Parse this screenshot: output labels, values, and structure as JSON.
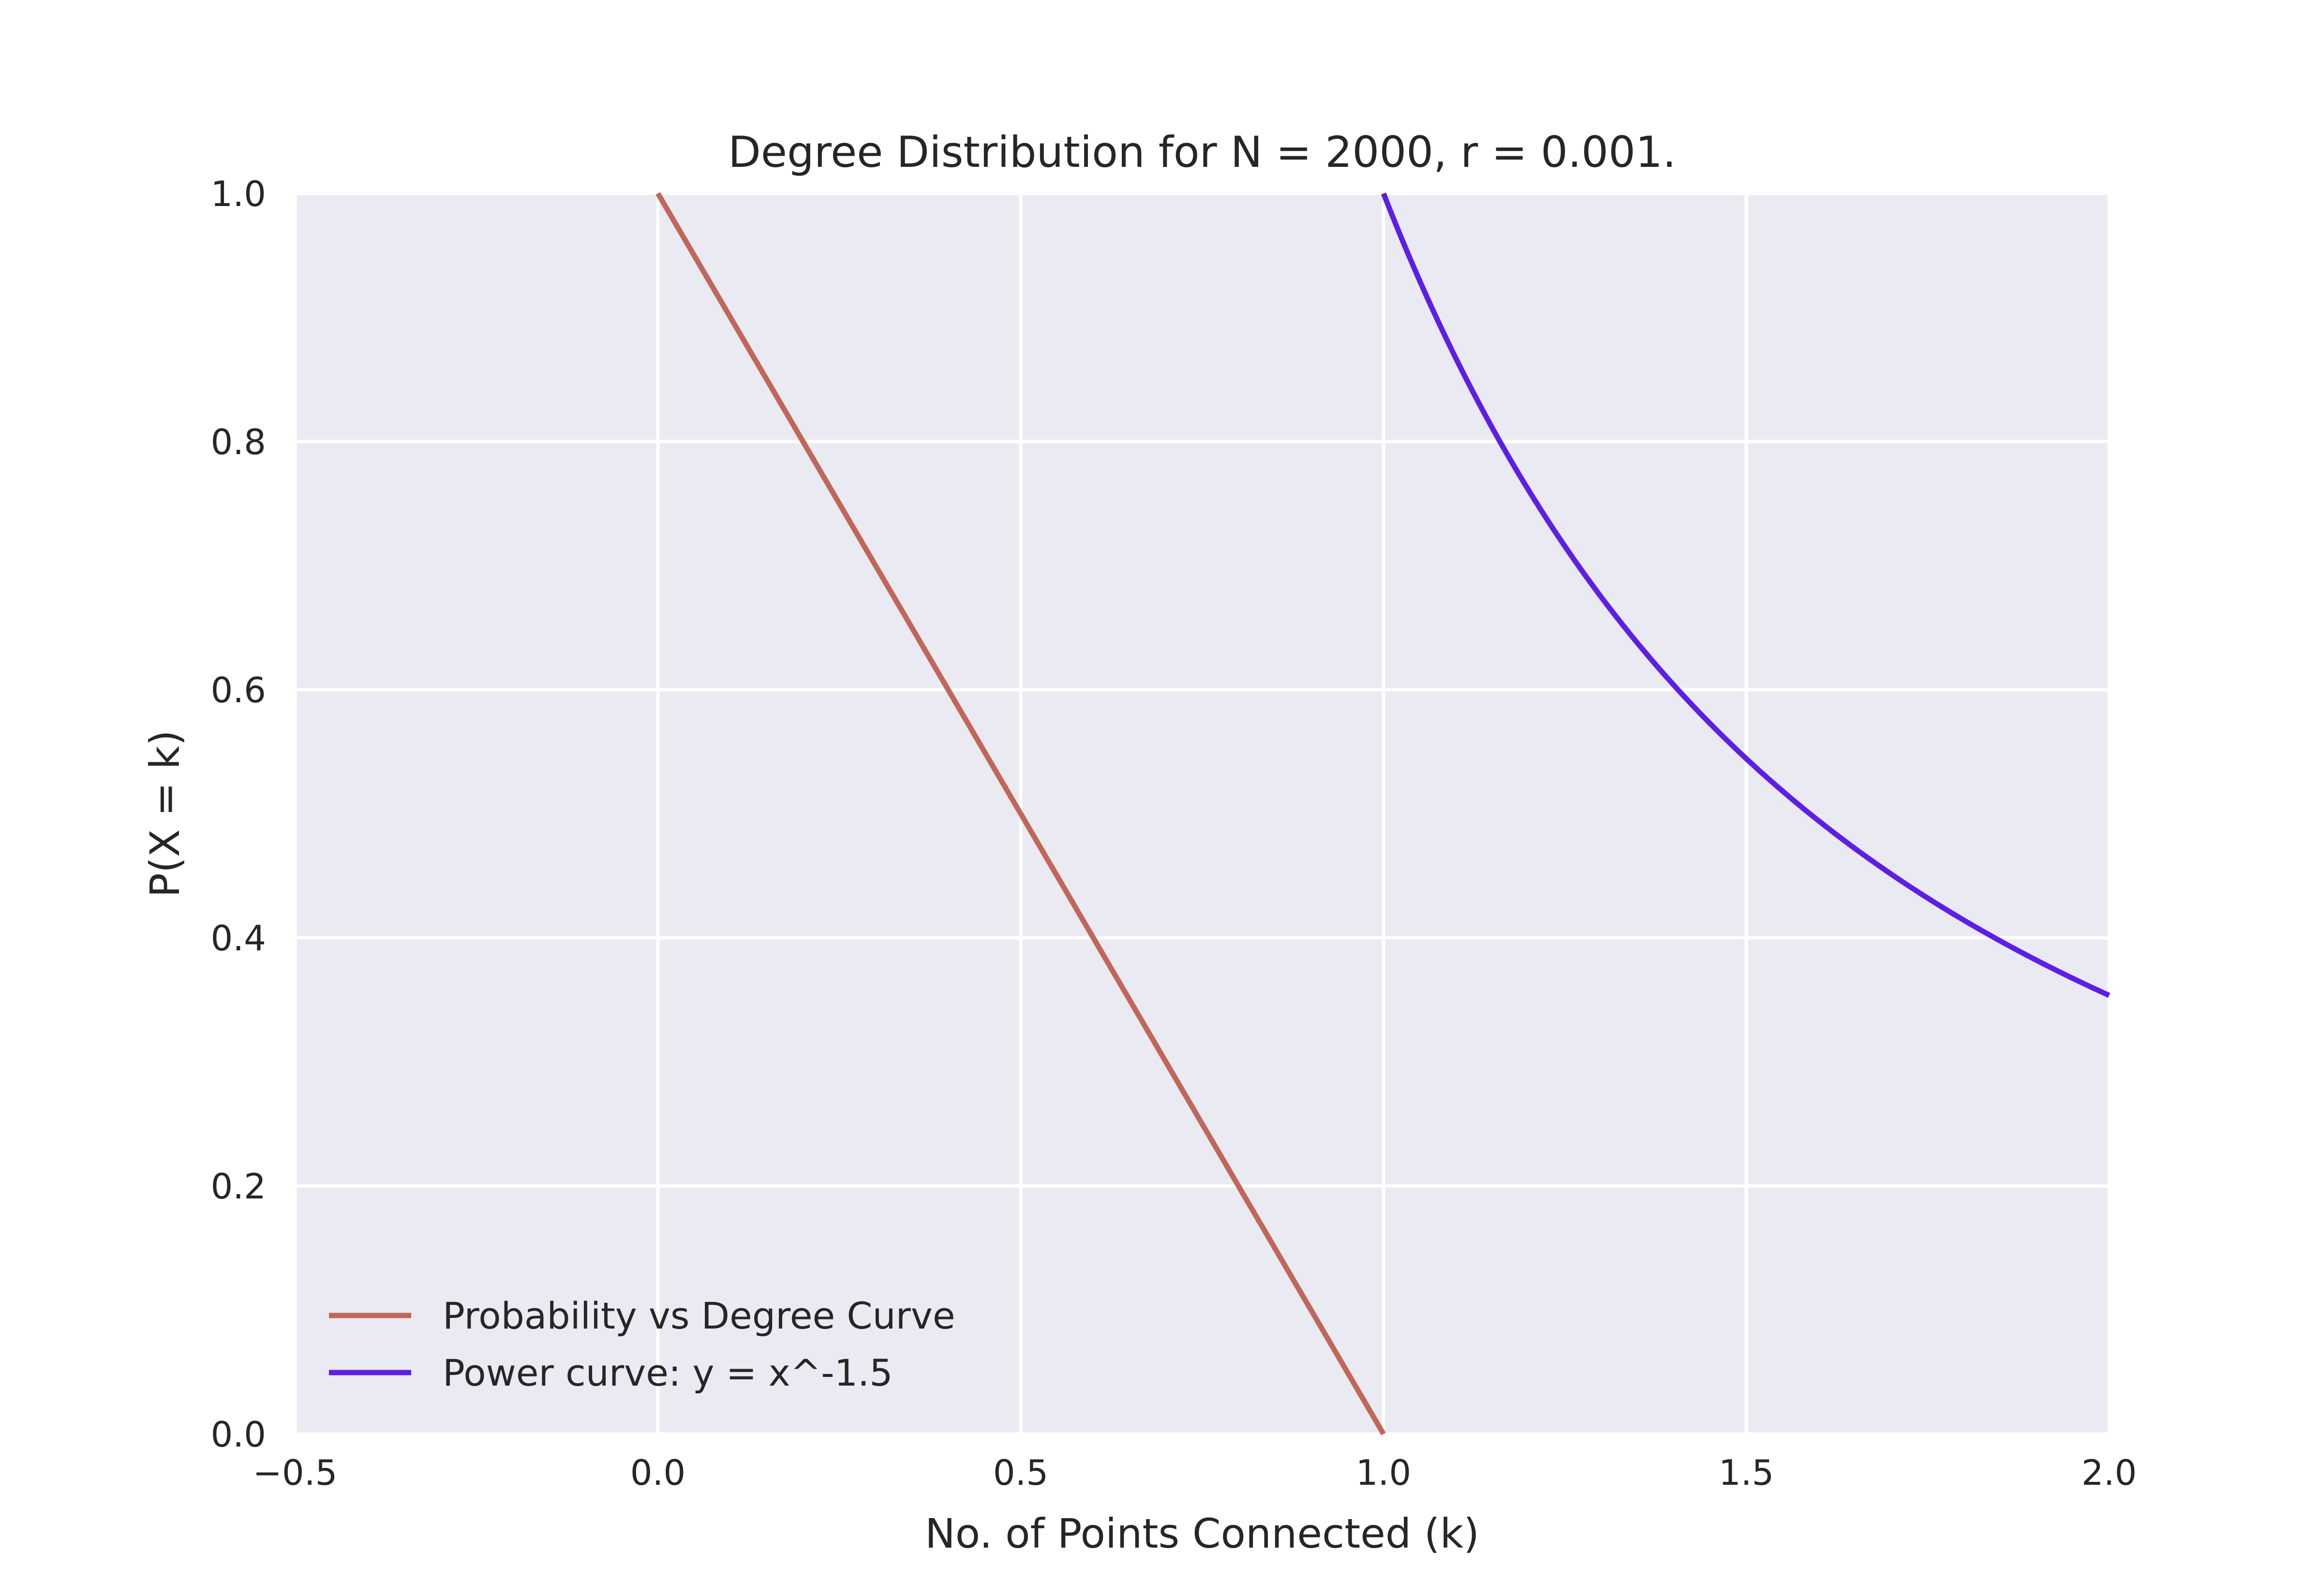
{
  "chart_data": {
    "type": "line",
    "title": "Degree Distribution for N = 2000, r = 0.001.",
    "xlabel": "No. of Points Connected (k)",
    "ylabel": "P(X = k)",
    "xlim": [
      -0.5,
      2.0
    ],
    "ylim": [
      0.0,
      1.0
    ],
    "xticks": [
      -0.5,
      0.0,
      0.5,
      1.0,
      1.5,
      2.0
    ],
    "xtick_labels": [
      "−0.5",
      "0.0",
      "0.5",
      "1.0",
      "1.5",
      "2.0"
    ],
    "yticks": [
      0.0,
      0.2,
      0.4,
      0.6,
      0.8,
      1.0
    ],
    "ytick_labels": [
      "0.0",
      "0.2",
      "0.4",
      "0.6",
      "0.8",
      "1.0"
    ],
    "grid": true,
    "legend_position": "lower-left",
    "background_color": "#EAEAF2",
    "series": [
      {
        "name": "Probability vs Degree Curve",
        "color": "#C0675A",
        "x": [
          0.0,
          1.0
        ],
        "y": [
          1.0,
          0.0
        ]
      },
      {
        "name": "Power curve: y = x^-1.5",
        "color": "#5D1FE5",
        "x": [
          1.0,
          1.05,
          1.1,
          1.15,
          1.2,
          1.25,
          1.3,
          1.35,
          1.4,
          1.45,
          1.5,
          1.55,
          1.6,
          1.65,
          1.7,
          1.75,
          1.8,
          1.85,
          1.9,
          1.95,
          2.0
        ],
        "y": [
          1.0,
          0.929,
          0.867,
          0.811,
          0.761,
          0.716,
          0.675,
          0.638,
          0.604,
          0.573,
          0.544,
          0.518,
          0.494,
          0.472,
          0.451,
          0.432,
          0.414,
          0.397,
          0.382,
          0.367,
          0.354
        ]
      }
    ]
  }
}
